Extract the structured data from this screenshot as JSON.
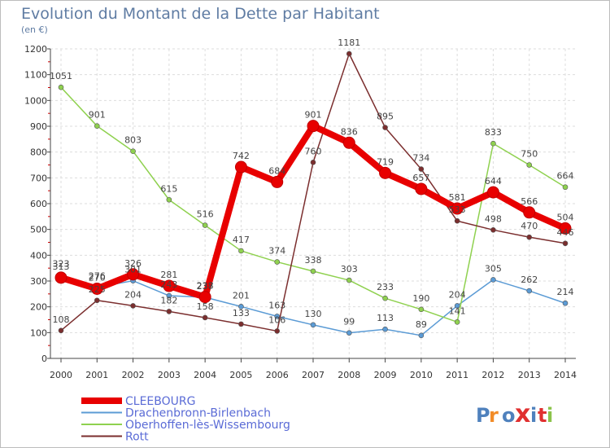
{
  "chart_data": {
    "type": "line",
    "title": "Evolution du Montant de la Dette par Habitant",
    "subtitle": "(en €)",
    "x": [
      "2000",
      "2001",
      "2002",
      "2003",
      "2004",
      "2005",
      "2006",
      "2007",
      "2008",
      "2009",
      "2010",
      "2011",
      "2012",
      "2013",
      "2014"
    ],
    "ylim": [
      0,
      1200
    ],
    "yticks": [
      0,
      100,
      200,
      300,
      400,
      500,
      600,
      700,
      800,
      900,
      1000,
      1100,
      1200
    ],
    "grid": true,
    "legend_position": "bottom-left",
    "series": [
      {
        "name": "CLEEBOURG",
        "color": "#e80000",
        "values": [
          313,
          270,
          326,
          281,
          238,
          742,
          684,
          901,
          836,
          719,
          657,
          581,
          644,
          566,
          504
        ]
      },
      {
        "name": "Drachenbronn-Birlenbach",
        "color": "#5b9bd5",
        "values": [
          323,
          276,
          301,
          243,
          237,
          201,
          163,
          130,
          99,
          113,
          89,
          204,
          305,
          262,
          214
        ]
      },
      {
        "name": "Oberhoffen-lès-Wissembourg",
        "color": "#8fd14f",
        "values": [
          1051,
          901,
          803,
          615,
          516,
          417,
          374,
          338,
          303,
          233,
          190,
          141,
          833,
          750,
          664
        ]
      },
      {
        "name": "Rott",
        "color": "#7b2e2e",
        "values": [
          108,
          225,
          204,
          182,
          158,
          133,
          106,
          760,
          1181,
          895,
          734,
          533,
          498,
          470,
          446
        ]
      }
    ]
  },
  "logo": {
    "text": "Proxiti",
    "letters": [
      "P",
      "r",
      "o",
      "x",
      "i",
      "t",
      "i"
    ],
    "letter_colors": [
      "#4f81bd",
      "#f28c28",
      "#4f81bd",
      "#e03030",
      "#4f81bd",
      "#e03030",
      "#8bc34a"
    ]
  }
}
